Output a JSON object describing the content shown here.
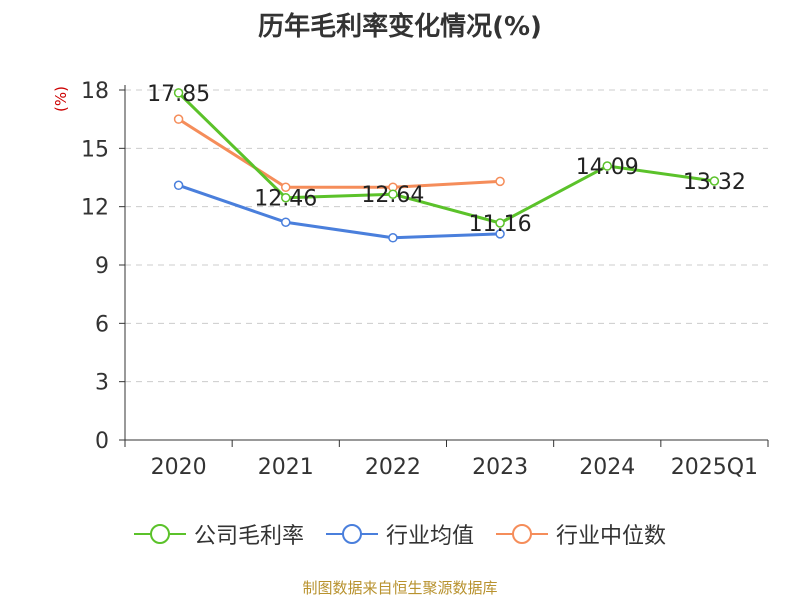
{
  "chart_data": {
    "type": "line",
    "title": "历年毛利率变化情况(%)",
    "ylabel": "(%)",
    "ylim": [
      0,
      18
    ],
    "yticks": [
      0,
      3,
      6,
      9,
      12,
      15,
      18
    ],
    "grid": true,
    "legend_position": "bottom",
    "categories": [
      "2020",
      "2021",
      "2022",
      "2023",
      "2024",
      "2025Q1"
    ],
    "series": [
      {
        "name": "公司毛利率",
        "color": "#5bc22a",
        "values": [
          17.85,
          12.46,
          12.64,
          11.16,
          14.09,
          13.32
        ],
        "labels": [
          "17.85",
          "12.46",
          "12.64",
          "11.16",
          "14.09",
          "13.32"
        ]
      },
      {
        "name": "行业均值",
        "color": "#4a7fdc",
        "values": [
          13.1,
          11.2,
          10.4,
          10.6,
          null,
          null
        ]
      },
      {
        "name": "行业中位数",
        "color": "#f58d5a",
        "values": [
          16.5,
          13.0,
          13.0,
          13.3,
          null,
          null
        ]
      }
    ]
  },
  "source": "制图数据来自恒生聚源数据库"
}
